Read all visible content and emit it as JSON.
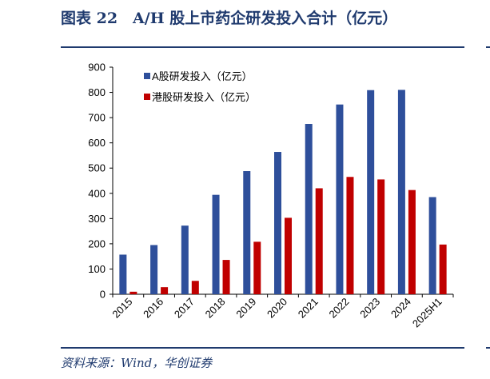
{
  "header": {
    "title": "图表 22　A/H 股上市药企研发投入合计（亿元）"
  },
  "footer": {
    "source": "资料来源：Wind，华创证券"
  },
  "chart_data": {
    "type": "bar",
    "title": "",
    "xlabel": "",
    "ylabel": "",
    "categories": [
      "2015",
      "2016",
      "2017",
      "2018",
      "2019",
      "2020",
      "2021",
      "2022",
      "2023",
      "2024",
      "2025H1"
    ],
    "ylim": [
      0,
      900
    ],
    "yticks": [
      0,
      100,
      200,
      300,
      400,
      500,
      600,
      700,
      800,
      900
    ],
    "grid": false,
    "legend_position": "top-left",
    "series": [
      {
        "name": "A股研发投入（亿元）",
        "color": "#2e4f9b",
        "values": [
          157,
          195,
          272,
          394,
          488,
          564,
          675,
          752,
          809,
          810,
          385
        ]
      },
      {
        "name": "港股研发投入（亿元）",
        "color": "#c00000",
        "values": [
          10,
          28,
          53,
          136,
          208,
          303,
          420,
          465,
          455,
          413,
          197
        ]
      }
    ]
  }
}
